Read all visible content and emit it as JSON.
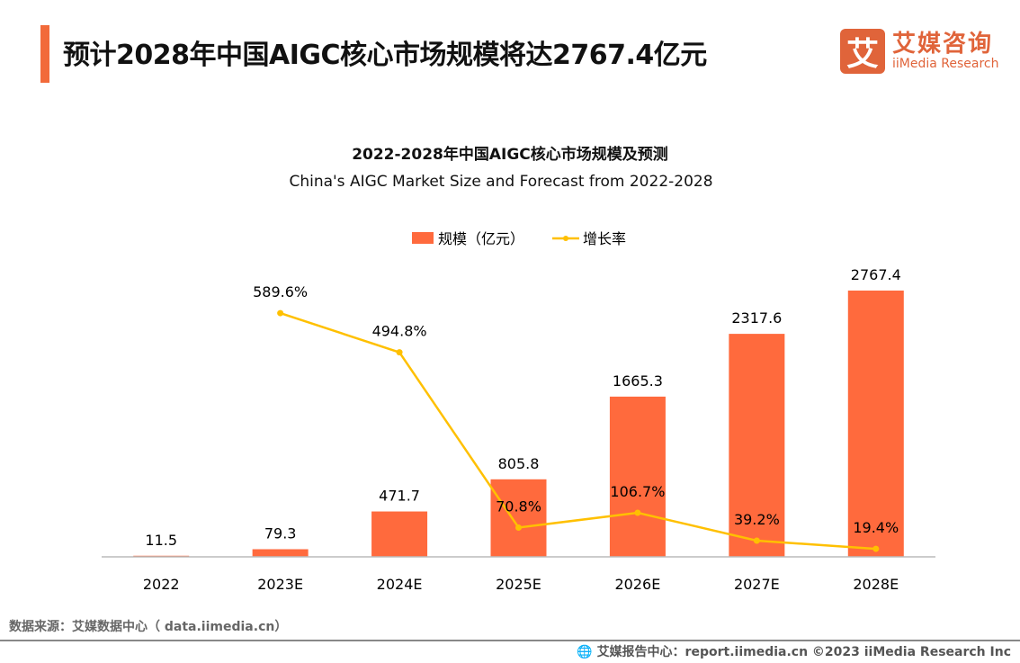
{
  "header": {
    "title": "预计2028年中国AIGC核心市场规模将达2767.4亿元"
  },
  "logo": {
    "mark": "艾",
    "name_cn": "艾媒咨询",
    "name_en": "iiMedia Research"
  },
  "chart_data": {
    "type": "bar",
    "title": "2022-2028年中国AIGC核心市场规模及预测",
    "subtitle": "China's AIGC Market Size and Forecast from 2022-2028",
    "categories": [
      "2022",
      "2023E",
      "2024E",
      "2025E",
      "2026E",
      "2027E",
      "2028E"
    ],
    "series": [
      {
        "name": "规模（亿元）",
        "type": "bar",
        "color": "#ff6a3d",
        "values": [
          11.5,
          79.3,
          471.7,
          805.8,
          1665.3,
          2317.6,
          2767.4
        ],
        "labels": [
          "11.5",
          "79.3",
          "471.7",
          "805.8",
          "1665.3",
          "2317.6",
          "2767.4"
        ]
      },
      {
        "name": "增长率",
        "type": "line",
        "color": "#ffc000",
        "values": [
          null,
          589.6,
          494.8,
          70.8,
          106.7,
          39.2,
          19.4
        ],
        "labels": [
          "",
          "589.6%",
          "494.8%",
          "70.8%",
          "106.7%",
          "39.2%",
          "19.4%"
        ]
      }
    ],
    "legend": "top-center",
    "grid": false
  },
  "footer": {
    "source": "数据来源：艾媒数据中心（ data.iimedia.cn）",
    "report": "艾媒报告中心：report.iimedia.cn   ©2023  iiMedia Research  Inc"
  }
}
